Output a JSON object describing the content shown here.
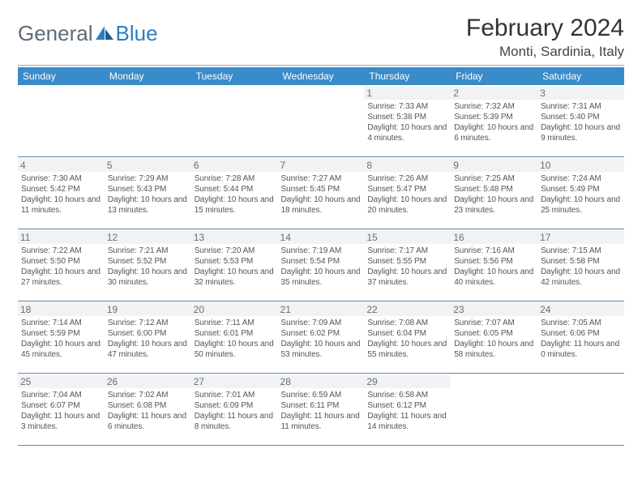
{
  "logo": {
    "text1": "General",
    "text2": "Blue"
  },
  "title": "February 2024",
  "location": "Monti, Sardinia, Italy",
  "colors": {
    "header_bg": "#3a8bc9",
    "header_text": "#ffffff",
    "rule": "#5a86a8",
    "daynum_bg": "#f1f2f3",
    "body_text": "#555555",
    "logo_gray": "#5e6b76",
    "logo_blue": "#2b7ec2"
  },
  "weekdays": [
    "Sunday",
    "Monday",
    "Tuesday",
    "Wednesday",
    "Thursday",
    "Friday",
    "Saturday"
  ],
  "first_weekday_index": 4,
  "days": [
    {
      "n": 1,
      "sunrise": "7:33 AM",
      "sunset": "5:38 PM",
      "daylight": "10 hours and 4 minutes."
    },
    {
      "n": 2,
      "sunrise": "7:32 AM",
      "sunset": "5:39 PM",
      "daylight": "10 hours and 6 minutes."
    },
    {
      "n": 3,
      "sunrise": "7:31 AM",
      "sunset": "5:40 PM",
      "daylight": "10 hours and 9 minutes."
    },
    {
      "n": 4,
      "sunrise": "7:30 AM",
      "sunset": "5:42 PM",
      "daylight": "10 hours and 11 minutes."
    },
    {
      "n": 5,
      "sunrise": "7:29 AM",
      "sunset": "5:43 PM",
      "daylight": "10 hours and 13 minutes."
    },
    {
      "n": 6,
      "sunrise": "7:28 AM",
      "sunset": "5:44 PM",
      "daylight": "10 hours and 15 minutes."
    },
    {
      "n": 7,
      "sunrise": "7:27 AM",
      "sunset": "5:45 PM",
      "daylight": "10 hours and 18 minutes."
    },
    {
      "n": 8,
      "sunrise": "7:26 AM",
      "sunset": "5:47 PM",
      "daylight": "10 hours and 20 minutes."
    },
    {
      "n": 9,
      "sunrise": "7:25 AM",
      "sunset": "5:48 PM",
      "daylight": "10 hours and 23 minutes."
    },
    {
      "n": 10,
      "sunrise": "7:24 AM",
      "sunset": "5:49 PM",
      "daylight": "10 hours and 25 minutes."
    },
    {
      "n": 11,
      "sunrise": "7:22 AM",
      "sunset": "5:50 PM",
      "daylight": "10 hours and 27 minutes."
    },
    {
      "n": 12,
      "sunrise": "7:21 AM",
      "sunset": "5:52 PM",
      "daylight": "10 hours and 30 minutes."
    },
    {
      "n": 13,
      "sunrise": "7:20 AM",
      "sunset": "5:53 PM",
      "daylight": "10 hours and 32 minutes."
    },
    {
      "n": 14,
      "sunrise": "7:19 AM",
      "sunset": "5:54 PM",
      "daylight": "10 hours and 35 minutes."
    },
    {
      "n": 15,
      "sunrise": "7:17 AM",
      "sunset": "5:55 PM",
      "daylight": "10 hours and 37 minutes."
    },
    {
      "n": 16,
      "sunrise": "7:16 AM",
      "sunset": "5:56 PM",
      "daylight": "10 hours and 40 minutes."
    },
    {
      "n": 17,
      "sunrise": "7:15 AM",
      "sunset": "5:58 PM",
      "daylight": "10 hours and 42 minutes."
    },
    {
      "n": 18,
      "sunrise": "7:14 AM",
      "sunset": "5:59 PM",
      "daylight": "10 hours and 45 minutes."
    },
    {
      "n": 19,
      "sunrise": "7:12 AM",
      "sunset": "6:00 PM",
      "daylight": "10 hours and 47 minutes."
    },
    {
      "n": 20,
      "sunrise": "7:11 AM",
      "sunset": "6:01 PM",
      "daylight": "10 hours and 50 minutes."
    },
    {
      "n": 21,
      "sunrise": "7:09 AM",
      "sunset": "6:02 PM",
      "daylight": "10 hours and 53 minutes."
    },
    {
      "n": 22,
      "sunrise": "7:08 AM",
      "sunset": "6:04 PM",
      "daylight": "10 hours and 55 minutes."
    },
    {
      "n": 23,
      "sunrise": "7:07 AM",
      "sunset": "6:05 PM",
      "daylight": "10 hours and 58 minutes."
    },
    {
      "n": 24,
      "sunrise": "7:05 AM",
      "sunset": "6:06 PM",
      "daylight": "11 hours and 0 minutes."
    },
    {
      "n": 25,
      "sunrise": "7:04 AM",
      "sunset": "6:07 PM",
      "daylight": "11 hours and 3 minutes."
    },
    {
      "n": 26,
      "sunrise": "7:02 AM",
      "sunset": "6:08 PM",
      "daylight": "11 hours and 6 minutes."
    },
    {
      "n": 27,
      "sunrise": "7:01 AM",
      "sunset": "6:09 PM",
      "daylight": "11 hours and 8 minutes."
    },
    {
      "n": 28,
      "sunrise": "6:59 AM",
      "sunset": "6:11 PM",
      "daylight": "11 hours and 11 minutes."
    },
    {
      "n": 29,
      "sunrise": "6:58 AM",
      "sunset": "6:12 PM",
      "daylight": "11 hours and 14 minutes."
    }
  ],
  "labels": {
    "sunrise": "Sunrise:",
    "sunset": "Sunset:",
    "daylight": "Daylight:"
  }
}
